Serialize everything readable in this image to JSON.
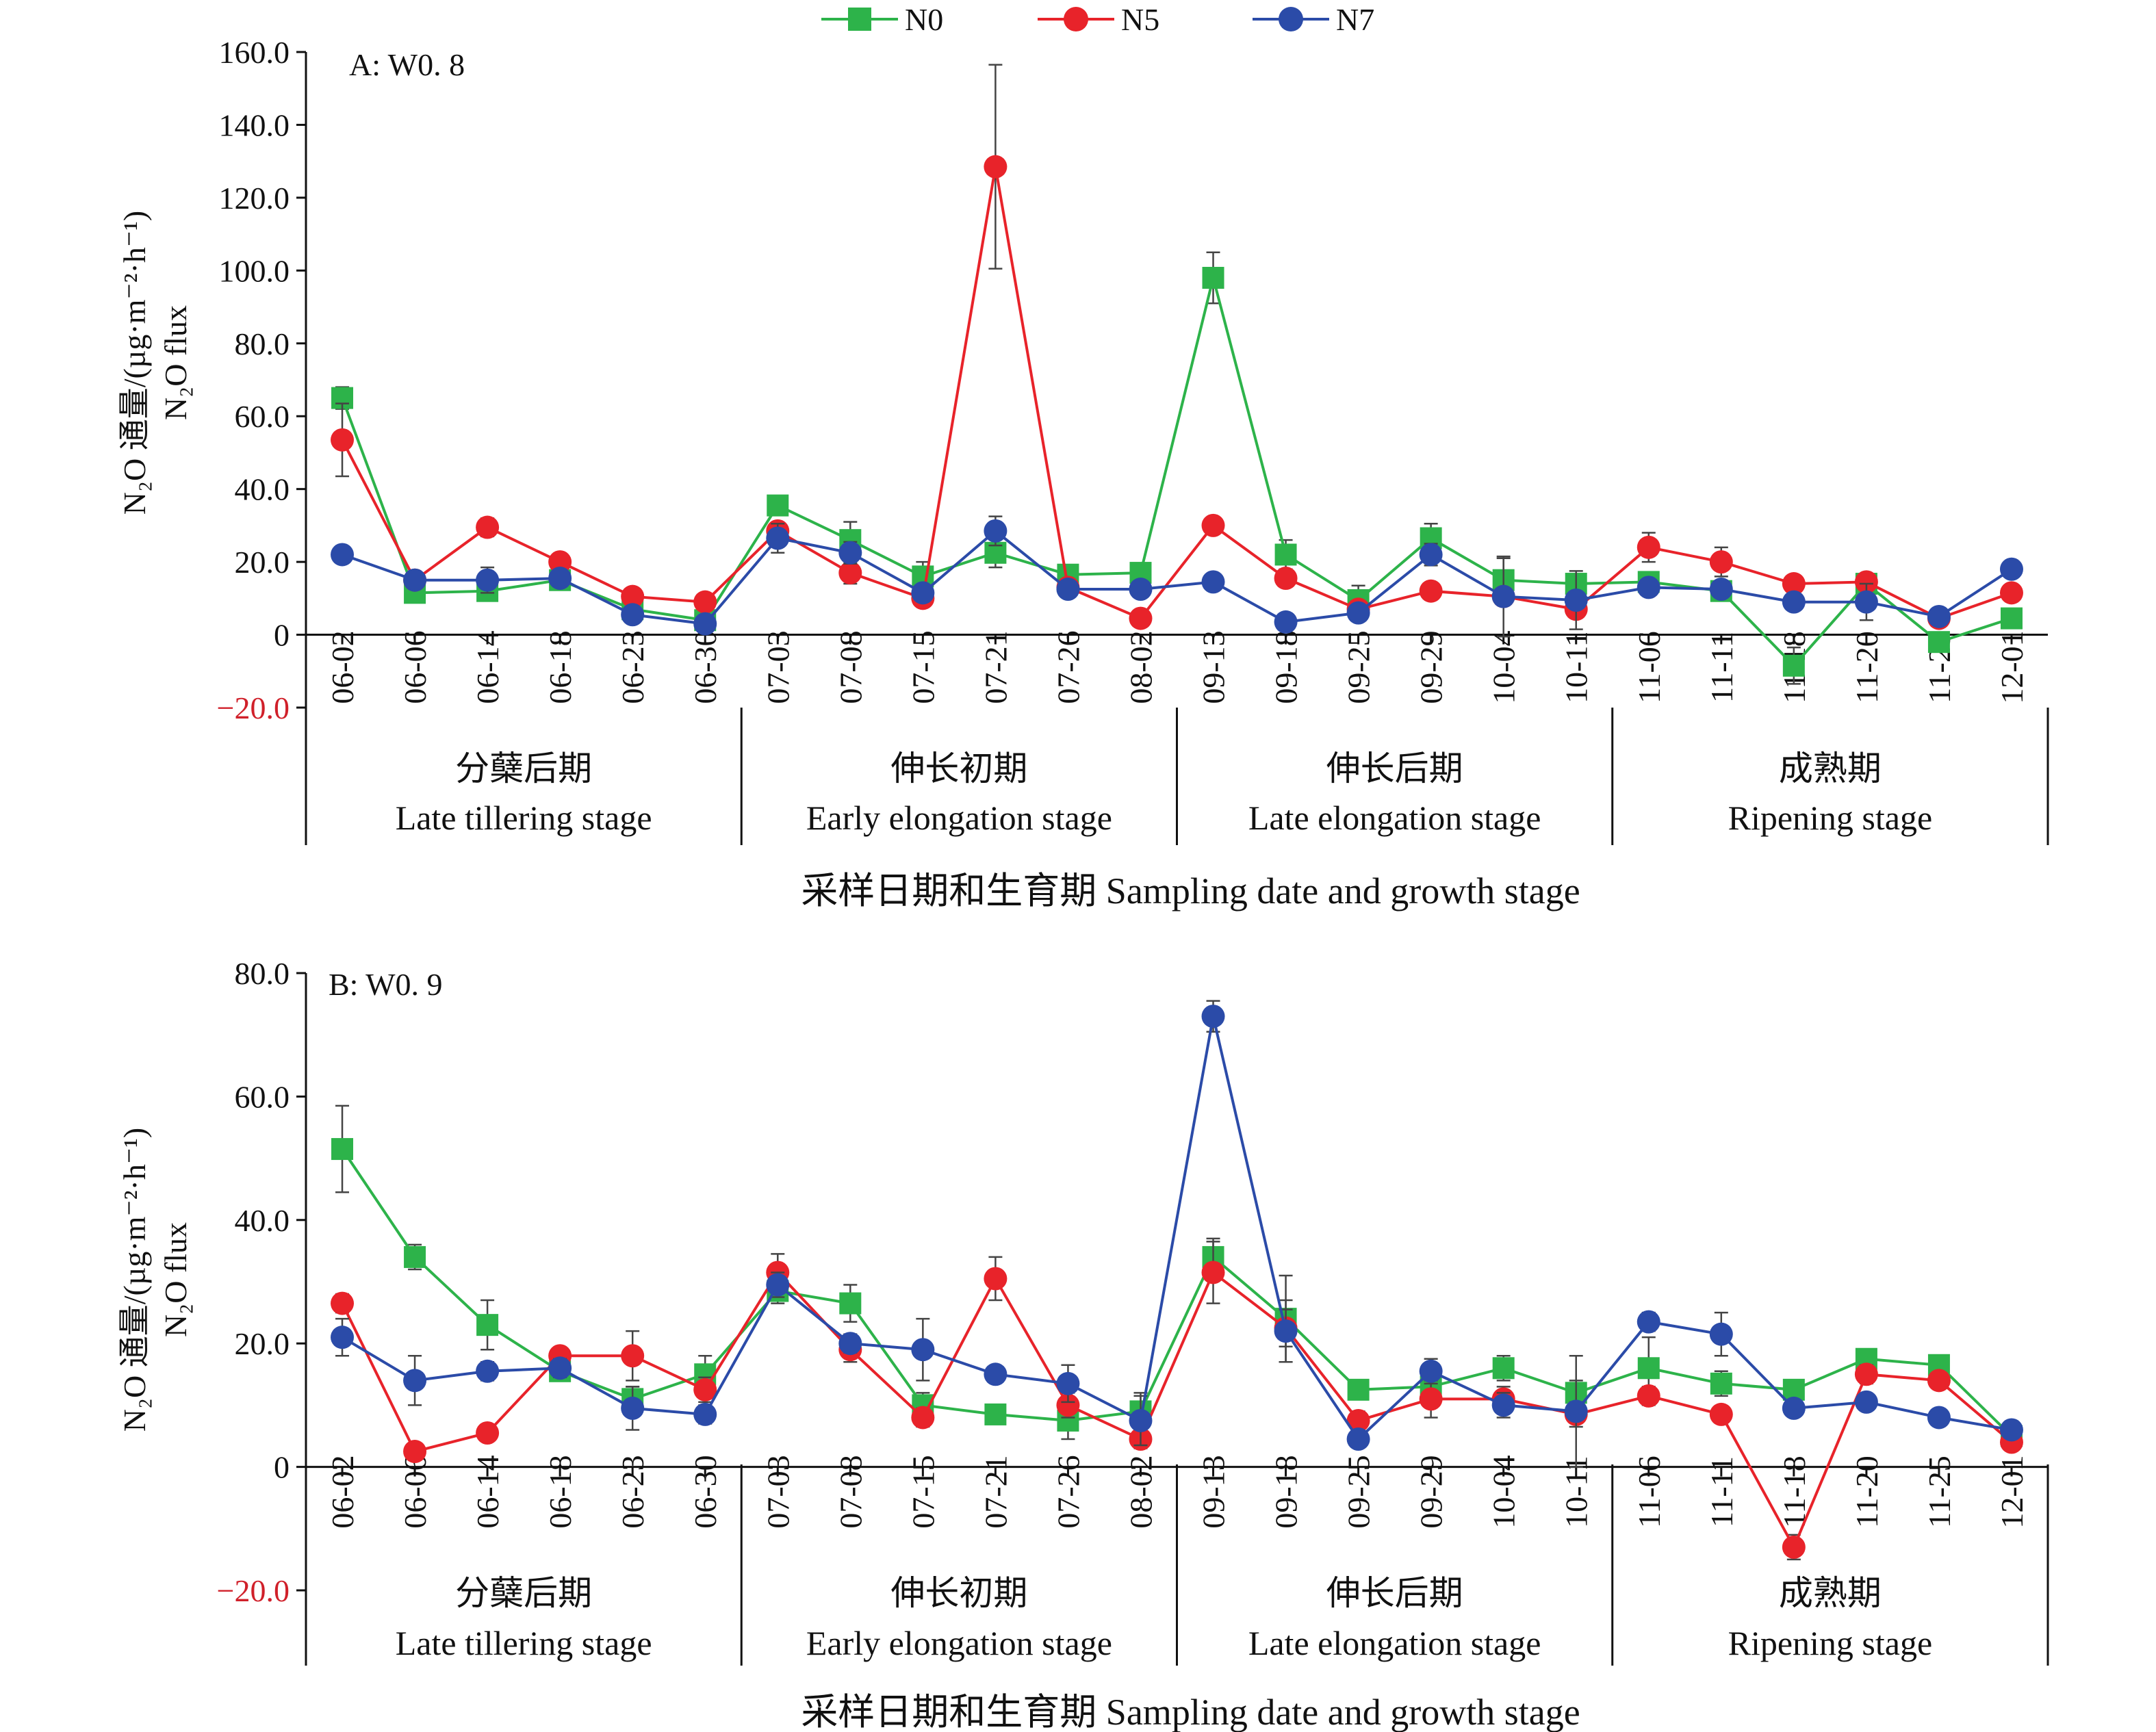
{
  "legend": [
    {
      "name": "N0",
      "color": "#2db34a",
      "marker": "square"
    },
    {
      "name": "N5",
      "color": "#e8232a",
      "marker": "circle"
    },
    {
      "name": "N7",
      "color": "#2b4ba8",
      "marker": "circle"
    }
  ],
  "chart_data": [
    {
      "type": "line",
      "title": "A: W0. 8",
      "ylabel_line1": "N₂O 通量/(µg·m⁻²·h⁻¹)",
      "ylabel_line2": "N₂O flux",
      "xlabel": "采样日期和生育期 Sampling date and growth stage",
      "ylim": [
        -20,
        160
      ],
      "yticks": [
        "160.0",
        "140.0",
        "120.0",
        "100.0",
        "80.0",
        "60.0",
        "40.0",
        "20.0",
        "0",
        "−20.0"
      ],
      "ytick_values": [
        160,
        140,
        120,
        100,
        80,
        60,
        40,
        20,
        0,
        -20
      ],
      "categories": [
        "06-02",
        "06-06",
        "06-14",
        "06-18",
        "06-23",
        "06-30",
        "07-03",
        "07-08",
        "07-15",
        "07-21",
        "07-26",
        "08-02",
        "09-13",
        "09-18",
        "09-25",
        "09-29",
        "10-04",
        "10-11",
        "11-06",
        "11-11",
        "11-18",
        "11-20",
        "11-25",
        "12-01"
      ],
      "stages": [
        {
          "zh": "分蘖后期",
          "en": "Late tillering stage",
          "span": [
            0,
            6
          ]
        },
        {
          "zh": "伸长初期",
          "en": "Early elongation stage",
          "span": [
            6,
            12
          ]
        },
        {
          "zh": "伸长后期",
          "en": "Late elongation stage",
          "span": [
            12,
            18
          ]
        },
        {
          "zh": "成熟期",
          "en": "Ripening stage",
          "span": [
            18,
            24
          ]
        }
      ],
      "series": [
        {
          "name": "N0",
          "values": [
            65,
            11.5,
            12,
            15,
            7,
            4,
            35.5,
            26,
            16,
            22.5,
            16.5,
            17,
            98,
            22,
            9.5,
            26.5,
            15,
            14,
            14.5,
            12,
            -8.5,
            14,
            -2,
            4.5
          ],
          "errors": [
            3,
            1.5,
            2,
            2,
            1.5,
            1.5,
            2,
            5,
            4,
            4,
            2,
            2,
            7,
            4,
            4,
            4,
            6,
            2,
            2,
            2,
            5,
            2,
            2,
            1
          ]
        },
        {
          "name": "N5",
          "values": [
            53.5,
            15,
            29.5,
            20,
            10.5,
            9,
            28.5,
            17,
            10,
            128.5,
            13,
            4.5,
            30,
            15.5,
            7,
            12,
            10.5,
            7,
            24,
            20,
            14,
            14.5,
            4.5,
            11.5
          ],
          "errors": [
            10,
            1.5,
            2.5,
            1.5,
            1.5,
            1.5,
            2,
            3,
            2,
            28,
            2,
            1.5,
            2,
            2,
            1.5,
            1.5,
            2,
            2,
            4,
            4,
            2,
            2,
            1.5,
            1.5
          ]
        },
        {
          "name": "N7",
          "values": [
            22,
            15,
            15,
            15.5,
            5.5,
            3,
            26.5,
            22.5,
            11.5,
            28.5,
            12.5,
            12.5,
            14.5,
            3.5,
            6,
            22,
            10.5,
            9.5,
            13,
            12.5,
            9,
            9,
            5,
            18
          ],
          "errors": [
            1.5,
            1.5,
            3.5,
            2,
            1.5,
            1.5,
            4,
            3,
            2,
            4,
            1.5,
            1.5,
            1.5,
            1,
            1.5,
            3,
            11,
            8,
            2,
            2,
            2,
            5,
            1,
            1.5
          ]
        }
      ]
    },
    {
      "type": "line",
      "title": "B: W0. 9",
      "ylabel_line1": "N₂O 通量/(µg·m⁻²·h⁻¹)",
      "ylabel_line2": "N₂O flux",
      "xlabel": "采样日期和生育期 Sampling date and growth stage",
      "ylim": [
        -20,
        80
      ],
      "yticks": [
        "80.0",
        "60.0",
        "40.0",
        "20.0",
        "0",
        "−20.0"
      ],
      "ytick_values": [
        80,
        60,
        40,
        20,
        0,
        -20
      ],
      "categories": [
        "06-02",
        "06-06",
        "06-14",
        "06-18",
        "06-23",
        "06-30",
        "07-03",
        "07-08",
        "07-15",
        "07-21",
        "07-26",
        "08-02",
        "09-13",
        "09-18",
        "09-25",
        "09-29",
        "10-04",
        "10-11",
        "11-06",
        "11-11",
        "11-18",
        "11-20",
        "11-25",
        "12-01"
      ],
      "stages": [
        {
          "zh": "分蘖后期",
          "en": "Late tillering stage",
          "span": [
            0,
            6
          ]
        },
        {
          "zh": "伸长初期",
          "en": "Early elongation stage",
          "span": [
            6,
            12
          ]
        },
        {
          "zh": "伸长后期",
          "en": "Late elongation stage",
          "span": [
            12,
            18
          ]
        },
        {
          "zh": "成熟期",
          "en": "Ripening stage",
          "span": [
            18,
            24
          ]
        }
      ],
      "series": [
        {
          "name": "N0",
          "values": [
            51.5,
            34,
            23,
            15.5,
            11,
            15,
            28.5,
            26.5,
            10,
            8.5,
            7.5,
            9,
            34,
            24,
            12.5,
            13,
            16,
            12,
            16,
            13.5,
            12.5,
            17.5,
            16.5,
            5
          ],
          "errors": [
            7,
            2,
            4,
            1,
            2,
            3,
            2,
            3,
            2,
            1,
            3,
            3,
            3,
            7,
            1,
            1,
            2,
            2,
            5,
            2,
            1,
            1,
            1,
            1
          ]
        },
        {
          "name": "N5",
          "values": [
            26.5,
            2.5,
            5.5,
            18,
            18,
            12.5,
            31.5,
            19,
            8,
            30.5,
            10,
            4.5,
            31.5,
            22.5,
            7.5,
            11,
            11,
            8.5,
            11.5,
            8.5,
            -13,
            15,
            14,
            4
          ],
          "errors": [
            1.5,
            1,
            1,
            1,
            4,
            2,
            3,
            2,
            1.5,
            3.5,
            2,
            1.5,
            5,
            3,
            1.5,
            3,
            2,
            2,
            1.5,
            1,
            2,
            1.5,
            1,
            1
          ]
        },
        {
          "name": "N7",
          "values": [
            21,
            14,
            15.5,
            16,
            9.5,
            8.5,
            29.5,
            20,
            19,
            15,
            13.5,
            7.5,
            73,
            22,
            4.5,
            15.5,
            10,
            9,
            23.5,
            21.5,
            9.5,
            10.5,
            8,
            6
          ],
          "errors": [
            3,
            4,
            1.5,
            1.5,
            3.5,
            1.5,
            2,
            1.5,
            5,
            1,
            3,
            4,
            2.5,
            5,
            1,
            2,
            2,
            9,
            1.5,
            3.5,
            1,
            1,
            1,
            1
          ]
        }
      ]
    }
  ]
}
